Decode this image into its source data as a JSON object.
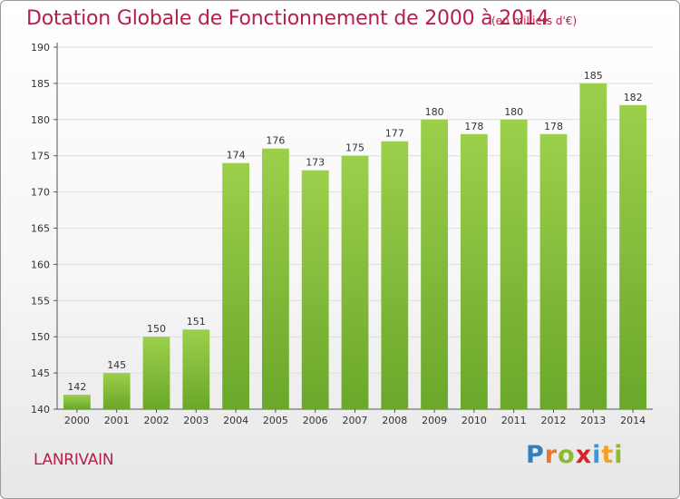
{
  "header": {
    "title": "Dotation Globale de Fonctionnement de 2000 à 2014",
    "unit": "(en milliers d'€)"
  },
  "footer": {
    "commune": "LANRIVAIN",
    "logo_letters": [
      "P",
      "r",
      "o",
      "x",
      "i",
      "t",
      "i"
    ],
    "logo_colors": [
      "#2f7fc1",
      "#e8762b",
      "#8dbb2d",
      "#d4242f",
      "#3c98d8",
      "#f0a12a",
      "#8dbb2d"
    ]
  },
  "colors": {
    "bar_light": "#9ccf4b",
    "bar_dark": "#6aa72a",
    "title": "#b5204a",
    "grid": "#dddddd"
  },
  "chart_data": {
    "type": "bar",
    "title": "Dotation Globale de Fonctionnement de 2000 à 2014",
    "subtitle": "(en milliers d'€)",
    "categories": [
      "2000",
      "2001",
      "2002",
      "2003",
      "2004",
      "2005",
      "2006",
      "2007",
      "2008",
      "2009",
      "2010",
      "2011",
      "2012",
      "2013",
      "2014"
    ],
    "values": [
      142,
      145,
      150,
      151,
      174,
      176,
      173,
      175,
      177,
      180,
      178,
      180,
      178,
      185,
      182
    ],
    "ylim": [
      140,
      190
    ],
    "yticks": [
      140,
      145,
      150,
      155,
      160,
      165,
      170,
      175,
      180,
      185,
      190
    ],
    "grid": true,
    "xlabel": "",
    "ylabel": ""
  }
}
